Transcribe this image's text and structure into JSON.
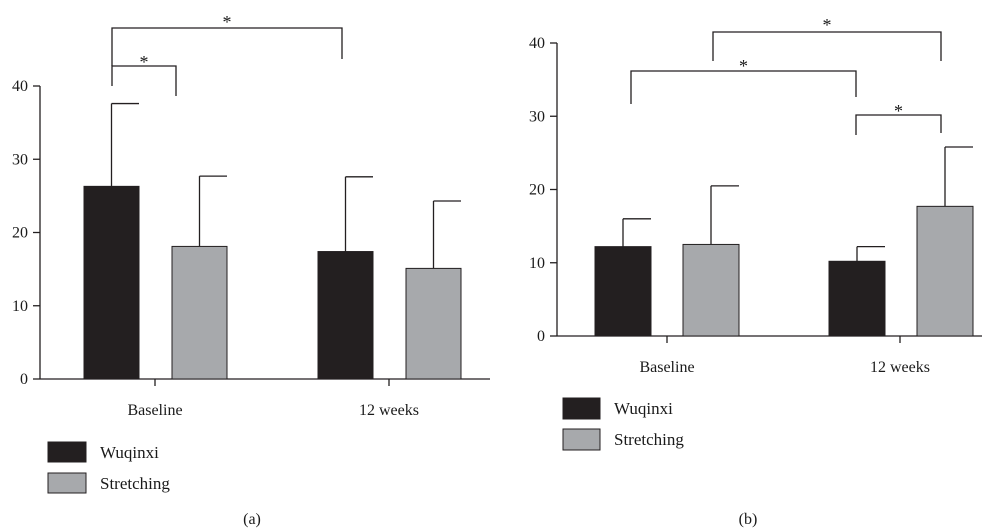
{
  "chart_data": [
    {
      "type": "bar",
      "panel_label": "(a)",
      "categories": [
        "Baseline",
        "12 weeks"
      ],
      "series": [
        {
          "name": "Wuqinxi",
          "values": [
            26.3,
            17.4
          ],
          "error": [
            11.3,
            10.2
          ]
        },
        {
          "name": "Stretching",
          "values": [
            18.1,
            15.1
          ],
          "error": [
            9.6,
            9.2
          ]
        }
      ],
      "ylim": [
        0,
        40
      ],
      "yticks": [
        "0",
        "10",
        "20",
        "30",
        "40"
      ],
      "error_bars": "upper",
      "legend_position": "bottom-left",
      "significance": [
        {
          "label": "*",
          "from": "Baseline Wuqinxi",
          "to": "Baseline Stretching"
        },
        {
          "label": "*",
          "from": "Baseline Wuqinxi",
          "to": "12 weeks Wuqinxi"
        }
      ],
      "colors": {
        "Wuqinxi": "#231f20",
        "Stretching": "#a7a9ac"
      }
    },
    {
      "type": "bar",
      "panel_label": "(b)",
      "categories": [
        "Baseline",
        "12 weeks"
      ],
      "series": [
        {
          "name": "Wuqinxi",
          "values": [
            12.2,
            10.2
          ],
          "error": [
            3.8,
            2.0
          ]
        },
        {
          "name": "Stretching",
          "values": [
            12.5,
            17.7
          ],
          "error": [
            8.0,
            8.1
          ]
        }
      ],
      "ylim": [
        0,
        40
      ],
      "yticks": [
        "0",
        "10",
        "20",
        "30",
        "40"
      ],
      "error_bars": "upper",
      "legend_position": "bottom-left",
      "significance": [
        {
          "label": "*",
          "from": "Baseline",
          "to": "12 weeks Wuqinxi"
        },
        {
          "label": "*",
          "from": "12 weeks Wuqinxi",
          "to": "12 weeks Stretching"
        },
        {
          "label": "*",
          "from": "Baseline Stretching",
          "to": "12 weeks Stretching"
        }
      ],
      "colors": {
        "Wuqinxi": "#231f20",
        "Stretching": "#a7a9ac"
      }
    }
  ]
}
